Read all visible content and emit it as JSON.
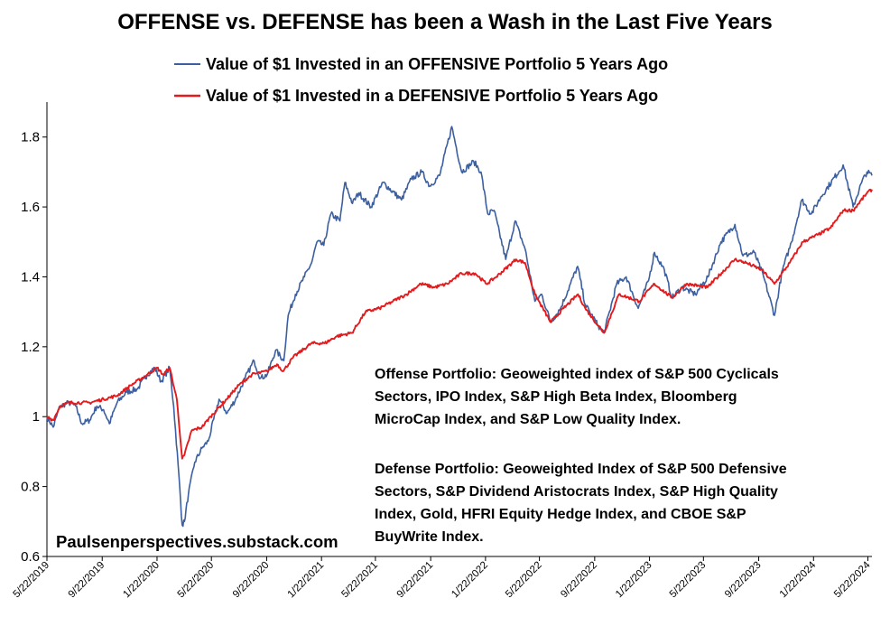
{
  "chart_data": {
    "type": "line",
    "title": "OFFENSE vs. DEFENSE has been a Wash in the Last Five Years",
    "ylim": [
      0.6,
      1.9
    ],
    "xlim": [
      "2019-05-22",
      "2024-05-31"
    ],
    "y_ticks": [
      "0.6",
      "0.8",
      "1",
      "1.2",
      "1.4",
      "1.6",
      "1.8"
    ],
    "y_tick_values": [
      0.6,
      0.8,
      1.0,
      1.2,
      1.4,
      1.6,
      1.8
    ],
    "x_ticks": [
      "5/22/2019",
      "9/22/2019",
      "1/22/2020",
      "5/22/2020",
      "9/22/2020",
      "1/22/2021",
      "5/22/2021",
      "9/22/2021",
      "1/22/2022",
      "5/22/2022",
      "9/22/2022",
      "1/22/2023",
      "5/22/2023",
      "9/22/2023",
      "1/22/2024",
      "5/22/2024"
    ],
    "x_tick_dates": [
      "2019-05-22",
      "2019-09-22",
      "2020-01-22",
      "2020-05-22",
      "2020-09-22",
      "2021-01-22",
      "2021-05-22",
      "2021-09-22",
      "2022-01-22",
      "2022-05-22",
      "2022-09-22",
      "2023-01-22",
      "2023-05-22",
      "2023-09-22",
      "2024-01-22",
      "2024-05-22"
    ],
    "grid": false,
    "legend_position": "top-center",
    "series": [
      {
        "name": "Value of $1 Invested in an OFFENSIVE Portfolio 5 Years Ago",
        "color": "#3b5fa0",
        "points": [
          [
            "2019-05-22",
            1.0
          ],
          [
            "2019-06-05",
            0.97
          ],
          [
            "2019-06-20",
            1.03
          ],
          [
            "2019-07-10",
            1.04
          ],
          [
            "2019-07-25",
            1.03
          ],
          [
            "2019-08-08",
            0.98
          ],
          [
            "2019-08-25",
            0.99
          ],
          [
            "2019-09-10",
            1.03
          ],
          [
            "2019-09-25",
            1.02
          ],
          [
            "2019-10-08",
            0.98
          ],
          [
            "2019-10-25",
            1.04
          ],
          [
            "2019-11-15",
            1.07
          ],
          [
            "2019-12-10",
            1.08
          ],
          [
            "2019-12-31",
            1.12
          ],
          [
            "2020-01-17",
            1.14
          ],
          [
            "2020-01-31",
            1.1
          ],
          [
            "2020-02-19",
            1.14
          ],
          [
            "2020-02-28",
            1.03
          ],
          [
            "2020-03-09",
            0.86
          ],
          [
            "2020-03-18",
            0.69
          ],
          [
            "2020-03-23",
            0.7
          ],
          [
            "2020-04-01",
            0.78
          ],
          [
            "2020-04-15",
            0.87
          ],
          [
            "2020-05-01",
            0.91
          ],
          [
            "2020-05-15",
            0.93
          ],
          [
            "2020-06-08",
            1.05
          ],
          [
            "2020-06-26",
            1.01
          ],
          [
            "2020-07-15",
            1.05
          ],
          [
            "2020-08-05",
            1.11
          ],
          [
            "2020-08-25",
            1.16
          ],
          [
            "2020-09-08",
            1.11
          ],
          [
            "2020-09-23",
            1.12
          ],
          [
            "2020-10-12",
            1.19
          ],
          [
            "2020-10-30",
            1.16
          ],
          [
            "2020-11-09",
            1.29
          ],
          [
            "2020-11-25",
            1.35
          ],
          [
            "2020-12-15",
            1.4
          ],
          [
            "2020-12-31",
            1.44
          ],
          [
            "2021-01-12",
            1.5
          ],
          [
            "2021-01-27",
            1.49
          ],
          [
            "2021-02-12",
            1.58
          ],
          [
            "2021-03-04",
            1.56
          ],
          [
            "2021-03-15",
            1.67
          ],
          [
            "2021-04-01",
            1.61
          ],
          [
            "2021-04-15",
            1.64
          ],
          [
            "2021-05-12",
            1.6
          ],
          [
            "2021-06-08",
            1.67
          ],
          [
            "2021-07-19",
            1.62
          ],
          [
            "2021-08-10",
            1.68
          ],
          [
            "2021-09-02",
            1.7
          ],
          [
            "2021-09-20",
            1.66
          ],
          [
            "2021-10-12",
            1.69
          ],
          [
            "2021-11-08",
            1.83
          ],
          [
            "2021-11-30",
            1.7
          ],
          [
            "2021-12-27",
            1.73
          ],
          [
            "2022-01-12",
            1.7
          ],
          [
            "2022-01-27",
            1.58
          ],
          [
            "2022-02-10",
            1.59
          ],
          [
            "2022-03-08",
            1.45
          ],
          [
            "2022-03-29",
            1.56
          ],
          [
            "2022-04-20",
            1.48
          ],
          [
            "2022-05-12",
            1.33
          ],
          [
            "2022-05-27",
            1.35
          ],
          [
            "2022-06-16",
            1.27
          ],
          [
            "2022-07-08",
            1.31
          ],
          [
            "2022-08-15",
            1.43
          ],
          [
            "2022-09-01",
            1.32
          ],
          [
            "2022-09-30",
            1.26
          ],
          [
            "2022-10-13",
            1.24
          ],
          [
            "2022-11-10",
            1.38
          ],
          [
            "2022-12-01",
            1.4
          ],
          [
            "2022-12-28",
            1.31
          ],
          [
            "2023-01-20",
            1.39
          ],
          [
            "2023-02-02",
            1.47
          ],
          [
            "2023-02-24",
            1.42
          ],
          [
            "2023-03-13",
            1.34
          ],
          [
            "2023-04-04",
            1.37
          ],
          [
            "2023-05-04",
            1.35
          ],
          [
            "2023-06-01",
            1.4
          ],
          [
            "2023-06-30",
            1.5
          ],
          [
            "2023-07-31",
            1.55
          ],
          [
            "2023-08-18",
            1.46
          ],
          [
            "2023-09-12",
            1.47
          ],
          [
            "2023-10-03",
            1.4
          ],
          [
            "2023-10-27",
            1.29
          ],
          [
            "2023-11-14",
            1.42
          ],
          [
            "2023-12-04",
            1.5
          ],
          [
            "2023-12-27",
            1.62
          ],
          [
            "2024-01-17",
            1.58
          ],
          [
            "2024-02-08",
            1.63
          ],
          [
            "2024-03-28",
            1.72
          ],
          [
            "2024-04-19",
            1.6
          ],
          [
            "2024-05-08",
            1.67
          ],
          [
            "2024-05-20",
            1.7
          ],
          [
            "2024-05-31",
            1.69
          ]
        ]
      },
      {
        "name": "Value of $1 Invested in a DEFENSIVE Portfolio 5 Years Ago",
        "color": "#e41a1c",
        "points": [
          [
            "2019-05-22",
            1.0
          ],
          [
            "2019-06-05",
            0.99
          ],
          [
            "2019-06-20",
            1.03
          ],
          [
            "2019-07-10",
            1.04
          ],
          [
            "2019-08-08",
            1.04
          ],
          [
            "2019-08-25",
            1.04
          ],
          [
            "2019-09-25",
            1.05
          ],
          [
            "2019-10-25",
            1.06
          ],
          [
            "2019-11-25",
            1.09
          ],
          [
            "2019-12-31",
            1.12
          ],
          [
            "2020-01-22",
            1.14
          ],
          [
            "2020-02-05",
            1.12
          ],
          [
            "2020-02-19",
            1.14
          ],
          [
            "2020-03-06",
            1.05
          ],
          [
            "2020-03-18",
            0.88
          ],
          [
            "2020-03-23",
            0.89
          ],
          [
            "2020-04-08",
            0.96
          ],
          [
            "2020-05-01",
            0.97
          ],
          [
            "2020-05-20",
            1.0
          ],
          [
            "2020-06-25",
            1.05
          ],
          [
            "2020-07-22",
            1.09
          ],
          [
            "2020-08-20",
            1.12
          ],
          [
            "2020-09-23",
            1.13
          ],
          [
            "2020-10-15",
            1.15
          ],
          [
            "2020-10-29",
            1.13
          ],
          [
            "2020-11-20",
            1.17
          ],
          [
            "2020-12-31",
            1.21
          ],
          [
            "2021-01-29",
            1.21
          ],
          [
            "2021-02-25",
            1.23
          ],
          [
            "2021-03-31",
            1.24
          ],
          [
            "2021-04-30",
            1.3
          ],
          [
            "2021-05-31",
            1.31
          ],
          [
            "2021-06-30",
            1.33
          ],
          [
            "2021-07-30",
            1.35
          ],
          [
            "2021-08-31",
            1.38
          ],
          [
            "2021-09-30",
            1.37
          ],
          [
            "2021-10-29",
            1.38
          ],
          [
            "2021-11-30",
            1.41
          ],
          [
            "2021-12-30",
            1.41
          ],
          [
            "2022-01-24",
            1.38
          ],
          [
            "2022-02-15",
            1.4
          ],
          [
            "2022-03-31",
            1.45
          ],
          [
            "2022-04-20",
            1.44
          ],
          [
            "2022-05-12",
            1.35
          ],
          [
            "2022-06-16",
            1.27
          ],
          [
            "2022-07-15",
            1.31
          ],
          [
            "2022-08-16",
            1.35
          ],
          [
            "2022-09-01",
            1.31
          ],
          [
            "2022-09-30",
            1.26
          ],
          [
            "2022-10-13",
            1.24
          ],
          [
            "2022-11-15",
            1.35
          ],
          [
            "2022-12-30",
            1.33
          ],
          [
            "2023-02-02",
            1.38
          ],
          [
            "2023-03-13",
            1.34
          ],
          [
            "2023-04-14",
            1.38
          ],
          [
            "2023-05-31",
            1.37
          ],
          [
            "2023-07-31",
            1.45
          ],
          [
            "2023-08-25",
            1.44
          ],
          [
            "2023-09-29",
            1.42
          ],
          [
            "2023-10-27",
            1.38
          ],
          [
            "2023-11-30",
            1.44
          ],
          [
            "2023-12-29",
            1.5
          ],
          [
            "2024-01-31",
            1.52
          ],
          [
            "2024-02-29",
            1.54
          ],
          [
            "2024-03-28",
            1.59
          ],
          [
            "2024-04-19",
            1.59
          ],
          [
            "2024-05-20",
            1.64
          ],
          [
            "2024-05-31",
            1.65
          ]
        ]
      }
    ]
  },
  "annotations": {
    "offense_note": [
      "Offense Portfolio:  Geoweighted index of S&P 500 Cyclicals",
      "Sectors, IPO Index, S&P High Beta Index, Bloomberg",
      "MicroCap Index, and S&P  Low Quality Index."
    ],
    "defense_note": [
      "Defense Portfolio:  Geoweighted Index of S&P 500 Defensive",
      "Sectors, S&P Dividend Aristocrats Index, S&P High Quality",
      "Index, Gold, HFRI Equity Hedge Index, and CBOE S&P",
      "BuyWrite Index."
    ],
    "watermark": "Paulsenperspectives.substack.com"
  }
}
